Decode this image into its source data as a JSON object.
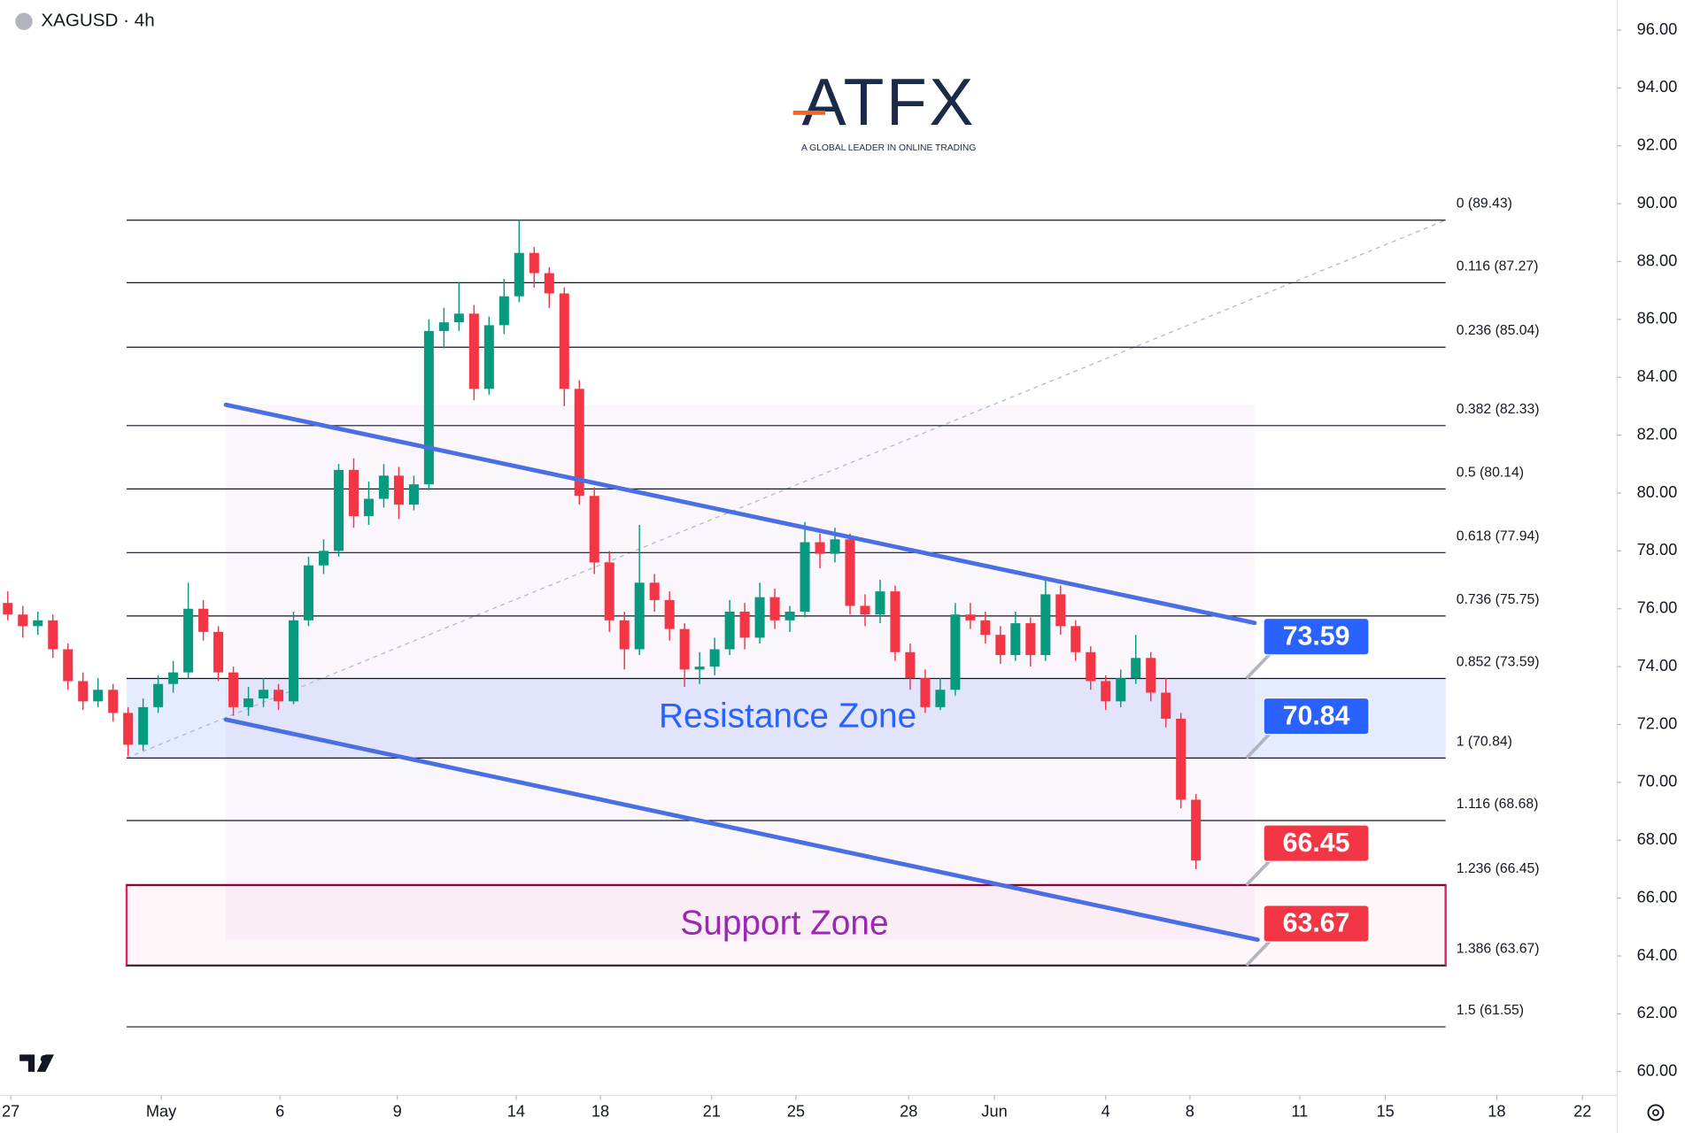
{
  "chart_data": {
    "type": "candlestick",
    "title": "XAGUSD · 4h",
    "watermark": {
      "brand": "ATFX",
      "tagline": "A GLOBAL LEADER IN ONLINE TRADING"
    },
    "xlim": [
      -0.5,
      107
    ],
    "xticks": [
      {
        "value": 0.2,
        "label": "27"
      },
      {
        "value": 10.2,
        "label": "May"
      },
      {
        "value": 18.1,
        "label": "6"
      },
      {
        "value": 25.9,
        "label": "9"
      },
      {
        "value": 33.8,
        "label": "14"
      },
      {
        "value": 39.4,
        "label": "18"
      },
      {
        "value": 46.8,
        "label": "21"
      },
      {
        "value": 52.4,
        "label": "25"
      },
      {
        "value": 59.9,
        "label": "28"
      },
      {
        "value": 65.6,
        "label": "Jun"
      },
      {
        "value": 73,
        "label": "4"
      },
      {
        "value": 78.6,
        "label": "8"
      },
      {
        "value": 85.9,
        "label": "11"
      },
      {
        "value": 91.6,
        "label": "15"
      },
      {
        "value": 99,
        "label": "18"
      },
      {
        "value": 104.7,
        "label": "22"
      }
    ],
    "ylim": [
      59.18,
      97.04
    ],
    "yticks": [
      {
        "value": 60,
        "label": "60.00"
      },
      {
        "value": 62,
        "label": "62.00"
      },
      {
        "value": 64,
        "label": "64.00"
      },
      {
        "value": 66,
        "label": "66.00"
      },
      {
        "value": 68,
        "label": "68.00"
      },
      {
        "value": 70,
        "label": "70.00"
      },
      {
        "value": 72,
        "label": "72.00"
      },
      {
        "value": 74,
        "label": "74.00"
      },
      {
        "value": 76,
        "label": "76.00"
      },
      {
        "value": 78,
        "label": "78.00"
      },
      {
        "value": 80,
        "label": "80.00"
      },
      {
        "value": 82,
        "label": "82.00"
      },
      {
        "value": 84,
        "label": "84.00"
      },
      {
        "value": 86,
        "label": "86.00"
      },
      {
        "value": 88,
        "label": "88.00"
      },
      {
        "value": 90,
        "label": "90.00"
      },
      {
        "value": 92,
        "label": "92.00"
      },
      {
        "value": 94,
        "label": "94.00"
      },
      {
        "value": 96,
        "label": "96.00"
      }
    ],
    "up_color": "#089981",
    "down_color": "#f23645",
    "open": [
      76.2,
      75.8,
      75.4,
      75.6,
      74.6,
      73.5,
      72.8,
      73.2,
      72.4,
      71.3,
      72.6,
      73.4,
      73.8,
      76.0,
      75.2,
      73.8,
      72.6,
      72.9,
      73.2,
      72.8,
      75.6,
      77.5,
      78.0,
      80.8,
      79.2,
      79.8,
      80.6,
      79.6,
      80.3,
      85.6,
      85.9,
      86.2,
      83.6,
      85.8,
      86.8,
      88.3,
      87.6,
      86.9,
      83.6,
      79.9,
      77.6,
      75.6,
      74.6,
      76.9,
      76.3,
      75.3,
      73.9,
      74.0,
      74.6,
      75.9,
      75.0,
      76.4,
      75.6,
      75.9,
      78.3,
      77.9,
      78.4,
      76.1,
      75.8,
      76.6,
      74.5,
      73.6,
      72.6,
      73.2,
      75.8,
      75.6,
      75.1,
      74.4,
      75.5,
      74.4,
      76.5,
      75.4,
      74.5,
      73.5,
      72.8,
      73.6,
      74.3,
      73.1,
      72.2,
      69.4
    ],
    "high": [
      76.6,
      76.1,
      75.9,
      75.8,
      74.8,
      73.8,
      73.6,
      73.4,
      72.6,
      72.9,
      73.7,
      74.2,
      76.9,
      76.3,
      75.4,
      74.0,
      73.3,
      73.6,
      73.4,
      75.9,
      77.8,
      78.4,
      81.0,
      81.2,
      80.4,
      81.0,
      80.9,
      80.6,
      86.0,
      86.4,
      87.3,
      86.5,
      86.1,
      87.4,
      89.43,
      88.5,
      87.8,
      87.1,
      83.9,
      80.2,
      78.0,
      75.9,
      78.9,
      77.2,
      76.6,
      75.5,
      74.5,
      75.0,
      76.3,
      76.2,
      76.9,
      76.7,
      76.1,
      79.0,
      78.6,
      78.8,
      78.6,
      76.5,
      77.0,
      76.8,
      74.8,
      73.9,
      73.6,
      76.2,
      76.2,
      75.9,
      75.4,
      75.9,
      75.7,
      77.0,
      76.8,
      75.6,
      74.7,
      73.7,
      73.9,
      75.1,
      74.5,
      73.6,
      72.4,
      69.6
    ],
    "low": [
      75.6,
      75.0,
      75.1,
      74.3,
      73.2,
      72.5,
      72.6,
      72.1,
      70.9,
      71.1,
      72.4,
      73.1,
      73.6,
      74.9,
      73.5,
      72.3,
      72.3,
      72.6,
      72.5,
      72.7,
      75.4,
      77.2,
      77.8,
      78.8,
      78.9,
      79.5,
      79.1,
      79.4,
      80.1,
      85.0,
      85.6,
      83.2,
      83.4,
      85.5,
      86.6,
      87.1,
      86.4,
      83.0,
      79.6,
      77.2,
      75.2,
      73.9,
      74.4,
      75.9,
      74.9,
      73.3,
      73.4,
      73.7,
      74.4,
      74.6,
      74.8,
      75.3,
      75.2,
      75.7,
      77.4,
      77.6,
      75.8,
      75.4,
      75.5,
      74.2,
      73.2,
      72.4,
      72.5,
      73.0,
      75.3,
      74.8,
      74.1,
      74.2,
      74.0,
      74.2,
      75.1,
      74.2,
      73.2,
      72.5,
      72.6,
      73.4,
      72.8,
      71.9,
      69.1,
      67.0
    ],
    "close": [
      75.8,
      75.4,
      75.6,
      74.6,
      73.5,
      72.8,
      73.2,
      72.4,
      71.3,
      72.6,
      73.4,
      73.8,
      76.0,
      75.2,
      73.8,
      72.6,
      72.9,
      73.2,
      72.8,
      75.6,
      77.5,
      78.0,
      80.8,
      79.2,
      79.8,
      80.6,
      79.6,
      80.3,
      85.6,
      85.9,
      86.2,
      83.6,
      85.8,
      86.8,
      88.3,
      87.6,
      86.9,
      83.6,
      79.9,
      77.6,
      75.6,
      74.6,
      76.9,
      76.3,
      75.3,
      73.9,
      74.0,
      74.6,
      75.9,
      75.0,
      76.4,
      75.6,
      75.9,
      78.3,
      77.9,
      78.4,
      76.1,
      75.8,
      76.6,
      74.5,
      73.6,
      72.6,
      73.2,
      75.8,
      75.6,
      75.1,
      74.4,
      75.5,
      74.4,
      76.5,
      75.4,
      74.5,
      73.5,
      72.8,
      73.6,
      74.3,
      73.1,
      72.2,
      69.4,
      67.3
    ],
    "fib_levels": [
      {
        "label": "0 (89.43)",
        "value": 89.43
      },
      {
        "label": "0.116 (87.27)",
        "value": 87.27
      },
      {
        "label": "0.236 (85.04)",
        "value": 85.04
      },
      {
        "label": "0.382 (82.33)",
        "value": 82.33
      },
      {
        "label": "0.5 (80.14)",
        "value": 80.14
      },
      {
        "label": "0.618 (77.94)",
        "value": 77.94
      },
      {
        "label": "0.736 (75.75)",
        "value": 75.75
      },
      {
        "label": "0.852 (73.59)",
        "value": 73.59
      },
      {
        "label": "1 (70.84)",
        "value": 70.84
      },
      {
        "label": "1.116 (68.68)",
        "value": 68.68
      },
      {
        "label": "1.236 (66.45)",
        "value": 66.45
      },
      {
        "label": "1.386 (63.67)",
        "value": 63.67
      },
      {
        "label": "1.5 (61.55)",
        "value": 61.55
      }
    ],
    "fib_x": [
      7.9,
      95.6
    ],
    "fib_trend": {
      "x": [
        7.9,
        95.6
      ],
      "y": [
        70.84,
        89.43
      ]
    },
    "resistance_zone": {
      "label": "Resistance Zone",
      "top": 73.59,
      "bottom": 70.84,
      "color": "#2962ff"
    },
    "support_zone": {
      "label": "Support Zone",
      "top": 66.45,
      "bottom": 63.67,
      "color": "#9c27b0",
      "border": "#e91e63"
    },
    "channel": {
      "color": "#4a6fe3",
      "upper": {
        "x": [
          14.5,
          82.9
        ],
        "y": [
          83.05,
          75.51
        ]
      },
      "lower": {
        "x": [
          14.5,
          83.1
        ],
        "y": [
          72.17,
          64.56
        ]
      }
    },
    "price_tags": [
      {
        "value": 73.59,
        "color": "#2962ff"
      },
      {
        "value": 70.84,
        "color": "#2962ff"
      },
      {
        "value": 66.45,
        "color": "#f23645"
      },
      {
        "value": 63.67,
        "color": "#f23645"
      }
    ]
  }
}
